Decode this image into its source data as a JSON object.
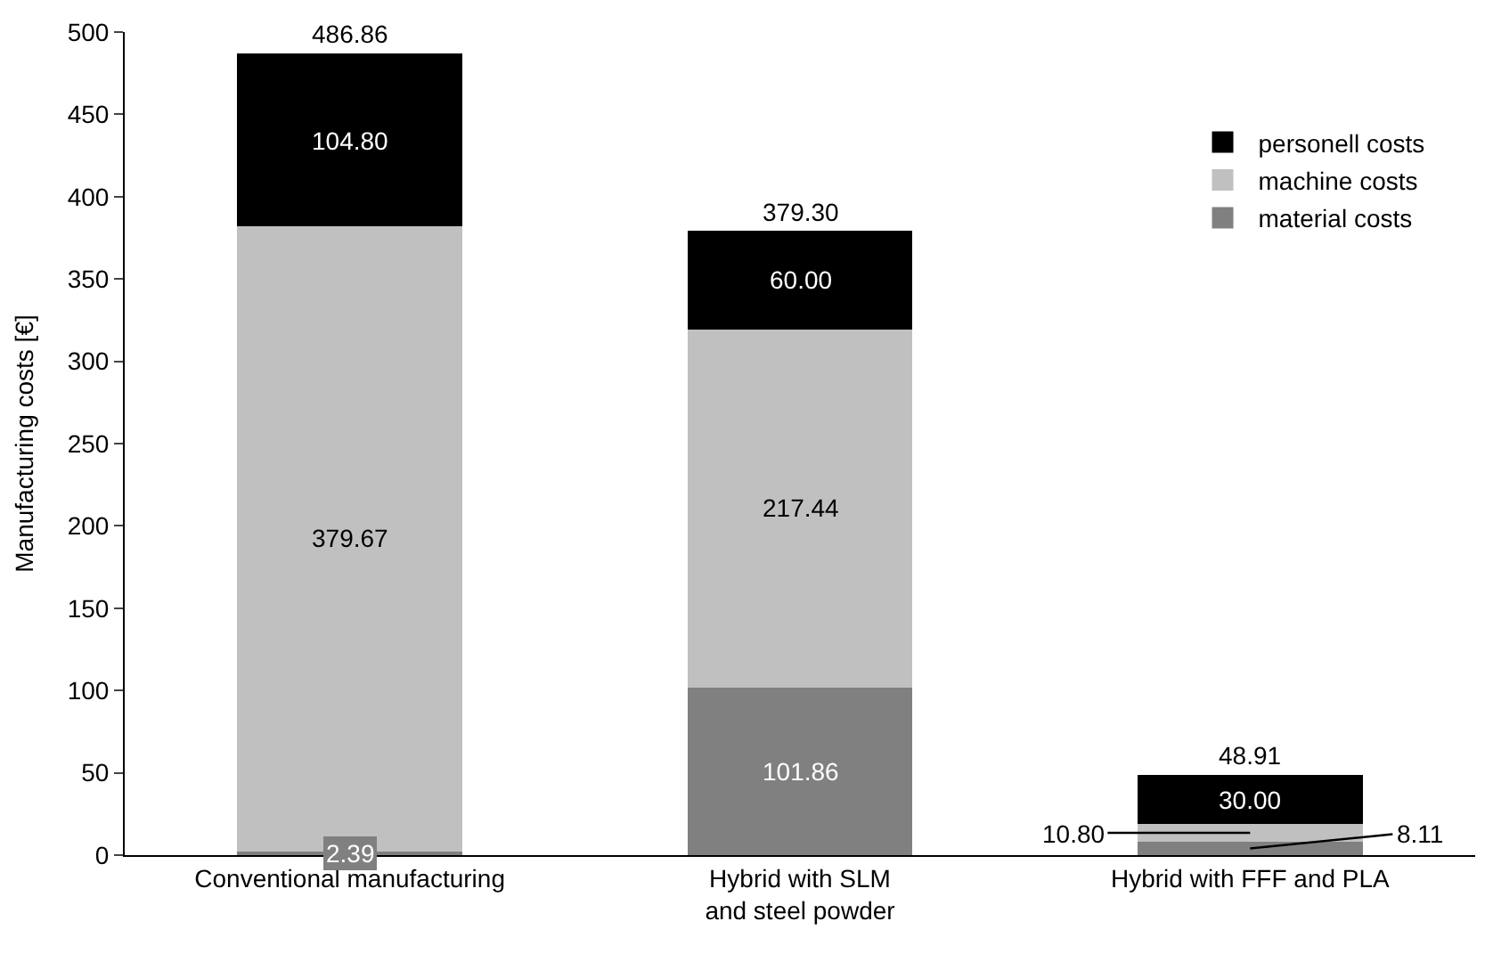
{
  "chart_data": {
    "type": "bar",
    "stacked": true,
    "ylabel": "Manufacturing costs [€]",
    "categories": [
      "Conventional manufacturing",
      "Hybrid with SLM\nand steel powder",
      "Hybrid with FFF and PLA"
    ],
    "series": [
      {
        "name": "material costs",
        "color": "#808080",
        "values": [
          2.39,
          101.86,
          8.11
        ],
        "value_labels": [
          "2.39",
          "101.86",
          "8.11"
        ]
      },
      {
        "name": "machine costs",
        "color": "#c0c0c0",
        "values": [
          379.67,
          217.44,
          10.8
        ],
        "value_labels": [
          "379.67",
          "217.44",
          "10.80"
        ]
      },
      {
        "name": "personell costs",
        "color": "#000000",
        "values": [
          104.8,
          60,
          30
        ],
        "value_labels": [
          "104.80",
          "60.00",
          "30.00"
        ]
      }
    ],
    "totals": [
      "486.86",
      "379.30",
      "48.91"
    ],
    "ylim": [
      0,
      500
    ],
    "yticks": [
      0,
      50,
      100,
      150,
      200,
      250,
      300,
      350,
      400,
      450,
      500
    ],
    "legend": "top right"
  }
}
